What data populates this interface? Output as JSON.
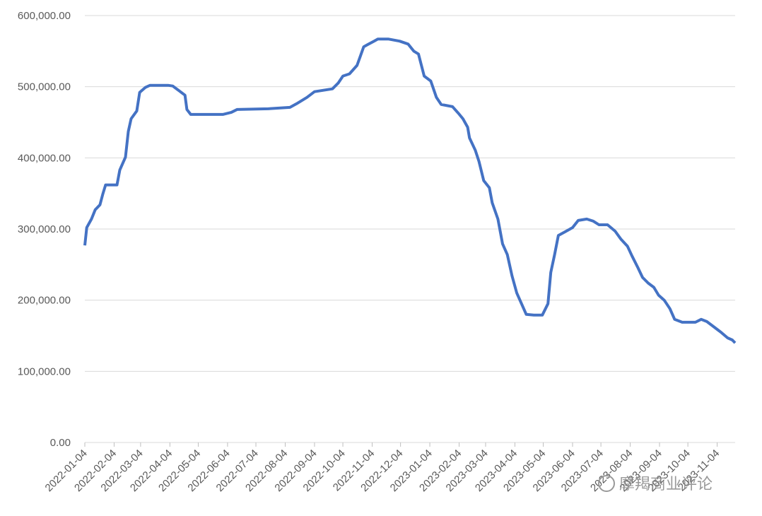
{
  "chart_data": {
    "type": "line",
    "x": [
      "2022-01-04",
      "2022-01-06",
      "2022-01-11",
      "2022-01-15",
      "2022-01-20",
      "2022-01-23",
      "2022-01-26",
      "2022-02-07",
      "2022-02-10",
      "2022-02-16",
      "2022-02-19",
      "2022-02-22",
      "2022-02-28",
      "2022-03-03",
      "2022-03-09",
      "2022-03-14",
      "2022-04-02",
      "2022-04-07",
      "2022-04-15",
      "2022-04-20",
      "2022-04-22",
      "2022-04-26",
      "2022-05-30",
      "2022-06-08",
      "2022-06-14",
      "2022-07-17",
      "2022-08-09",
      "2022-08-16",
      "2022-08-27",
      "2022-09-04",
      "2022-09-23",
      "2022-09-29",
      "2022-10-04",
      "2022-10-11",
      "2022-10-19",
      "2022-10-26",
      "2022-10-30",
      "2022-11-06",
      "2022-11-10",
      "2022-11-21",
      "2022-12-03",
      "2022-12-12",
      "2022-12-18",
      "2022-12-23",
      "2022-12-29",
      "2023-01-05",
      "2023-01-11",
      "2023-01-16",
      "2023-01-28",
      "2023-02-03",
      "2023-02-08",
      "2023-02-13",
      "2023-02-15",
      "2023-02-21",
      "2023-02-25",
      "2023-03-02",
      "2023-03-08",
      "2023-03-11",
      "2023-03-17",
      "2023-03-22",
      "2023-03-27",
      "2023-04-01",
      "2023-04-06",
      "2023-04-11",
      "2023-04-16",
      "2023-04-24",
      "2023-05-03",
      "2023-05-09",
      "2023-05-12",
      "2023-05-16",
      "2023-05-20",
      "2023-05-27",
      "2023-06-04",
      "2023-06-10",
      "2023-06-19",
      "2023-06-26",
      "2023-07-02",
      "2023-07-11",
      "2023-07-19",
      "2023-07-25",
      "2023-08-01",
      "2023-08-06",
      "2023-08-12",
      "2023-08-17",
      "2023-08-23",
      "2023-08-29",
      "2023-09-03",
      "2023-09-09",
      "2023-09-15",
      "2023-09-20",
      "2023-09-28",
      "2023-10-12",
      "2023-10-18",
      "2023-10-24",
      "2023-10-31",
      "2023-11-08",
      "2023-11-15",
      "2023-11-20",
      "2023-11-23"
    ],
    "series": [
      {
        "color": "#4472c4",
        "values": [
          277000,
          302000,
          314000,
          327000,
          334000,
          349000,
          362000,
          362000,
          383000,
          401000,
          437000,
          455000,
          466000,
          492000,
          499000,
          502000,
          502000,
          501000,
          493000,
          488000,
          468000,
          461000,
          461000,
          464000,
          468000,
          469000,
          471000,
          476000,
          485000,
          493000,
          497000,
          505000,
          515000,
          518000,
          530000,
          556000,
          559000,
          564000,
          567000,
          567000,
          564000,
          560000,
          550000,
          546000,
          515000,
          508000,
          485000,
          475000,
          472000,
          463000,
          455000,
          443000,
          428000,
          411000,
          395000,
          368000,
          358000,
          337000,
          314000,
          279000,
          264000,
          234000,
          210000,
          195000,
          180000,
          179000,
          179000,
          195000,
          239000,
          264000,
          291000,
          296000,
          302000,
          312000,
          314000,
          311000,
          306000,
          306000,
          297000,
          286000,
          276000,
          262000,
          246000,
          232000,
          224000,
          218000,
          207000,
          200000,
          188000,
          173000,
          169000,
          169000,
          173000,
          170000,
          163000,
          155000,
          147000,
          144000,
          140000
        ]
      }
    ],
    "xlim": [
      "2022-01-04",
      "2023-11-23"
    ],
    "xticks": [
      "2022-01-04",
      "2022-02-04",
      "2022-03-04",
      "2022-04-04",
      "2022-05-04",
      "2022-06-04",
      "2022-07-04",
      "2022-08-04",
      "2022-09-04",
      "2022-10-04",
      "2022-11-04",
      "2022-12-04",
      "2023-01-04",
      "2023-02-04",
      "2023-03-04",
      "2023-04-04",
      "2023-05-04",
      "2023-06-04",
      "2023-07-04",
      "2023-08-04",
      "2023-09-04",
      "2023-10-04",
      "2023-11-04"
    ],
    "ylim": [
      0,
      600000
    ],
    "yticks": [
      {
        "value": 0,
        "label": "0.00"
      },
      {
        "value": 100000,
        "label": "100,000.00"
      },
      {
        "value": 200000,
        "label": "200,000.00"
      },
      {
        "value": 300000,
        "label": "300,000.00"
      },
      {
        "value": 400000,
        "label": "400,000.00"
      },
      {
        "value": 500000,
        "label": "500,000.00"
      },
      {
        "value": 600000,
        "label": "600,000.00"
      }
    ],
    "grid": true,
    "watermark": "摩羯商业评论"
  }
}
